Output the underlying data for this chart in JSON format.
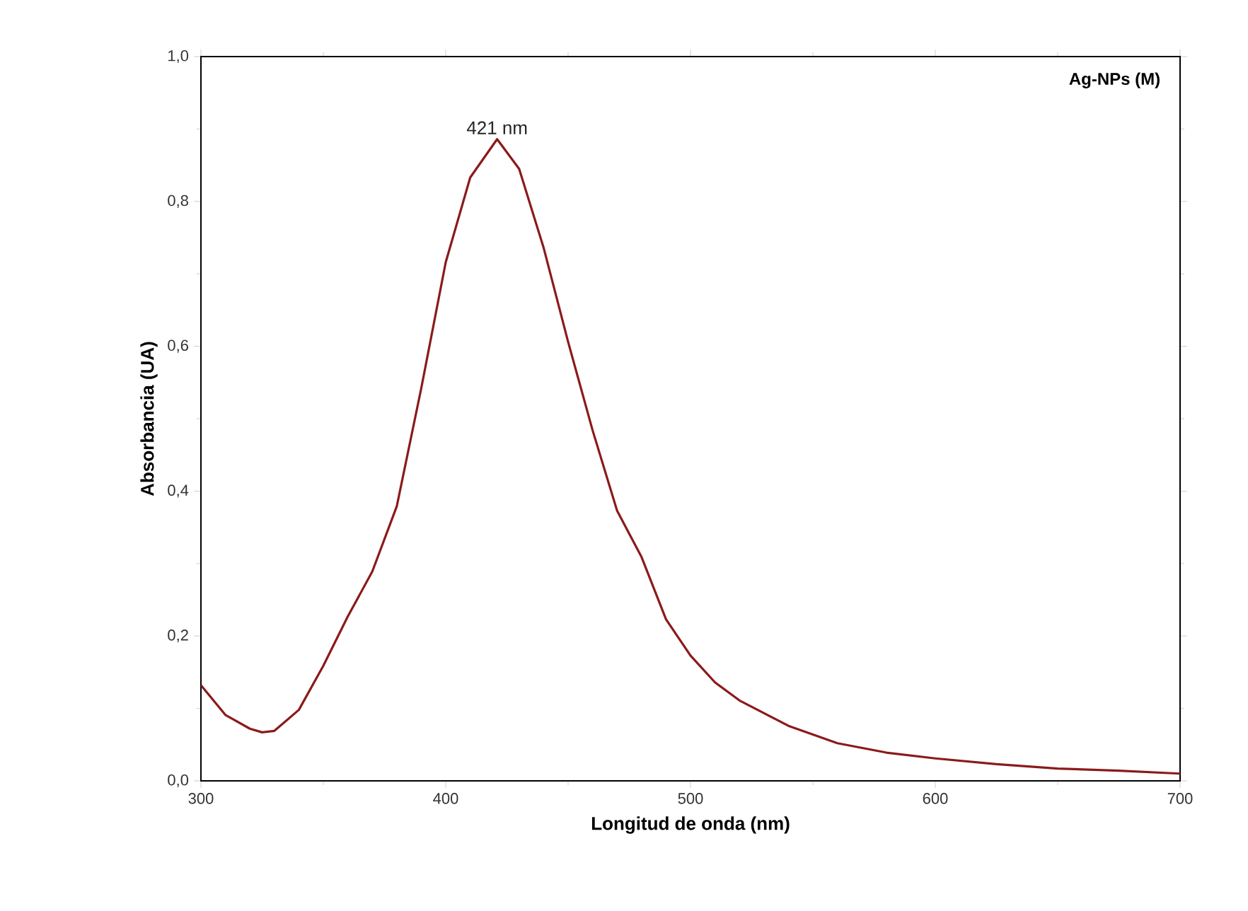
{
  "chart_data": {
    "type": "line",
    "xlabel": "Longitud de onda (nm)",
    "ylabel": "Absorbancia (UA)",
    "annotations": [
      "Ag-NPs (M)",
      {
        "text": "421 nm",
        "x": 421,
        "y": 0.886
      }
    ],
    "series": [
      {
        "color": "#8b1a1a",
        "x": [
          300,
          310,
          320,
          325,
          330,
          340,
          350,
          360,
          370,
          380,
          390,
          400,
          410,
          421,
          430,
          440,
          450,
          460,
          470,
          480,
          490,
          500,
          510,
          520,
          540,
          560,
          580,
          600,
          625,
          650,
          675,
          700
        ],
        "values": [
          0.132,
          0.091,
          0.072,
          0.067,
          0.069,
          0.098,
          0.159,
          0.227,
          0.289,
          0.379,
          0.542,
          0.716,
          0.833,
          0.886,
          0.845,
          0.736,
          0.606,
          0.484,
          0.373,
          0.309,
          0.223,
          0.173,
          0.136,
          0.111,
          0.076,
          0.052,
          0.039,
          0.031,
          0.023,
          0.017,
          0.014,
          0.01
        ]
      }
    ],
    "xlim": [
      300,
      700
    ],
    "ylim": [
      0,
      1
    ],
    "xticks": [
      300,
      400,
      500,
      600,
      700
    ],
    "yticks": [
      {
        "value": 0,
        "label": "0,0"
      },
      {
        "value": 0.2,
        "label": "0,2"
      },
      {
        "value": 0.4,
        "label": "0,4"
      },
      {
        "value": 0.6,
        "label": "0,6"
      },
      {
        "value": 0.8,
        "label": "0,8"
      },
      {
        "value": 1,
        "label": "1,0"
      }
    ],
    "marker": "none",
    "line_style": "solid"
  }
}
